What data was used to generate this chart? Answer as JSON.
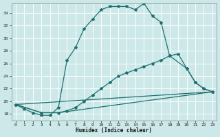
{
  "xlabel": "Humidex (Indice chaleur)",
  "bg_color": "#cce8e8",
  "grid_color": "#b8d8d8",
  "line_color": "#1a7070",
  "ylim": [
    17.0,
    35.5
  ],
  "yticks": [
    18,
    20,
    22,
    24,
    26,
    28,
    30,
    32,
    34
  ],
  "xticks": [
    0,
    1,
    2,
    3,
    4,
    5,
    6,
    7,
    8,
    9,
    10,
    11,
    12,
    13,
    14,
    15,
    16,
    17,
    18,
    19,
    20,
    21,
    22,
    23
  ],
  "curve1_x": [
    0,
    1,
    2,
    3,
    4,
    5,
    6,
    7,
    8,
    9,
    10,
    11,
    12,
    13,
    14,
    15,
    16,
    17,
    18,
    20,
    21,
    22,
    23
  ],
  "curve1_y": [
    19.5,
    18.8,
    18.2,
    17.8,
    17.8,
    19.0,
    26.5,
    28.5,
    31.5,
    33.0,
    34.5,
    35.0,
    35.0,
    35.0,
    34.5,
    35.5,
    33.5,
    32.5,
    27.2,
    25.2,
    23.0,
    22.0,
    21.5
  ],
  "curve2_x": [
    0,
    3,
    5,
    6,
    7,
    8,
    9,
    10,
    11,
    12,
    13,
    14,
    15,
    16,
    17,
    18,
    19,
    20,
    21,
    22,
    23
  ],
  "curve2_y": [
    19.5,
    18.2,
    18.2,
    18.5,
    19.0,
    20.0,
    21.0,
    22.0,
    23.0,
    24.0,
    24.5,
    25.0,
    25.5,
    26.0,
    26.5,
    27.2,
    27.5,
    25.2,
    23.0,
    22.0,
    21.5
  ],
  "curve3_x": [
    0,
    3,
    5,
    23
  ],
  "curve3_y": [
    19.5,
    18.2,
    18.2,
    21.5
  ],
  "curve4_x": [
    0,
    23
  ],
  "curve4_y": [
    19.5,
    21.5
  ]
}
